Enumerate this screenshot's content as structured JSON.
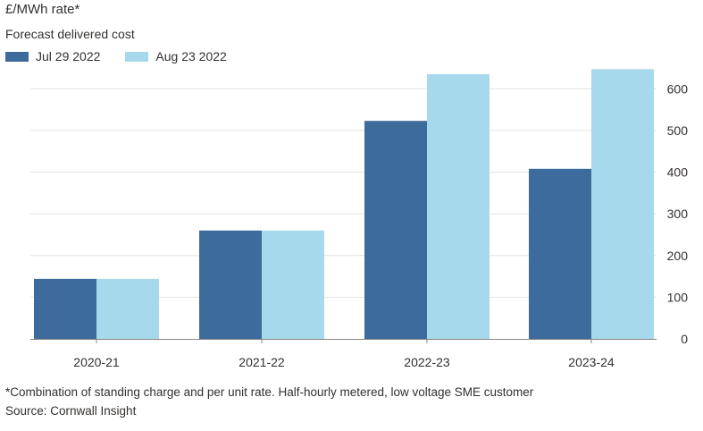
{
  "chart_data": {
    "type": "bar",
    "title": "£/MWh rate*",
    "subtitle": "Forecast delivered cost",
    "categories": [
      "2020-21",
      "2021-22",
      "2022-23",
      "2023-24"
    ],
    "series": [
      {
        "name": "Jul 29 2022",
        "color": "#3d6b9c",
        "values": [
          144,
          260,
          523,
          408
        ]
      },
      {
        "name": "Aug 23 2022",
        "color": "#a6d9eb",
        "values": [
          144,
          260,
          635,
          647
        ]
      }
    ],
    "yticks": [
      0,
      100,
      200,
      300,
      400,
      500,
      600
    ],
    "ylim": [
      0,
      680
    ],
    "grid": true,
    "y_axis_side": "right",
    "legend_position": "top-left"
  },
  "footnote": "*Combination of standing charge and per unit rate. Half-hourly metered, low voltage SME customer",
  "source": "Source: Cornwall Insight"
}
